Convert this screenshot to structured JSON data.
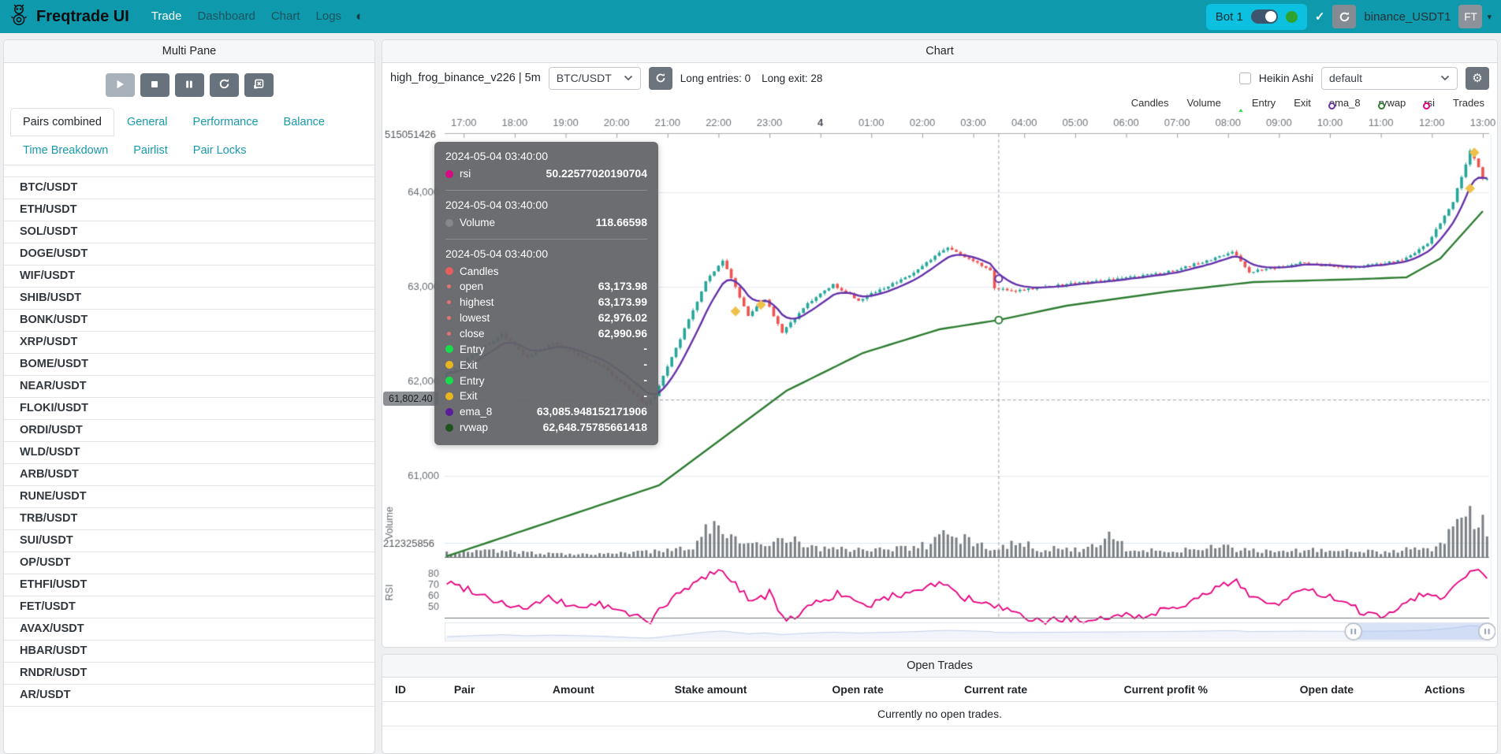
{
  "navbar": {
    "brand": "Freqtrade UI",
    "items": [
      {
        "label": "Trade",
        "active": true
      },
      {
        "label": "Dashboard",
        "active": false
      },
      {
        "label": "Chart",
        "active": false
      },
      {
        "label": "Logs",
        "active": false
      }
    ],
    "bot_label": "Bot 1",
    "account": "binance_USDT1",
    "avatar": "FT"
  },
  "icons": {
    "theme": "◐",
    "check": "✓",
    "caret": "▾",
    "gear": "⚙"
  },
  "sidebar": {
    "title": "Multi Pane",
    "controls": [
      "play",
      "stop",
      "pause",
      "refresh",
      "close-chart"
    ],
    "tabs": [
      "Pairs combined",
      "General",
      "Performance",
      "Balance",
      "Time Breakdown",
      "Pairlist",
      "Pair Locks"
    ],
    "active_tab": "Pairs combined",
    "pairs": [
      "BTC/USDT",
      "ETH/USDT",
      "SOL/USDT",
      "DOGE/USDT",
      "WIF/USDT",
      "SHIB/USDT",
      "BONK/USDT",
      "XRP/USDT",
      "BOME/USDT",
      "NEAR/USDT",
      "FLOKI/USDT",
      "ORDI/USDT",
      "WLD/USDT",
      "ARB/USDT",
      "RUNE/USDT",
      "TRB/USDT",
      "SUI/USDT",
      "OP/USDT",
      "ETHFI/USDT",
      "FET/USDT",
      "AVAX/USDT",
      "HBAR/USDT",
      "RNDR/USDT",
      "AR/USDT"
    ]
  },
  "chart": {
    "panel_title": "Chart",
    "strategy": "high_frog_binance_v226 | 5m",
    "pair": "BTC/USDT",
    "entries_label": "Long entries: 0",
    "exits_label": "Long exit: 28",
    "heikin_ashi_label": "Heikin Ashi",
    "plot_config": "default",
    "legend": [
      {
        "label": "Candles",
        "marker": "rect",
        "color": "#2aa79b"
      },
      {
        "label": "Volume",
        "marker": "rect",
        "color": "#808488"
      },
      {
        "label": "Entry",
        "marker": "triangle",
        "color": "#35e04f"
      },
      {
        "label": "Exit",
        "marker": "diamond",
        "color": "#f0c04a"
      },
      {
        "label": "ema_8",
        "marker": "ring-line",
        "color": "#6633aa"
      },
      {
        "label": "rvwap",
        "marker": "ring-line",
        "color": "#2e7d32"
      },
      {
        "label": "rsi",
        "marker": "ring-line",
        "color": "#e6007e"
      },
      {
        "label": "Trades",
        "marker": "circle",
        "color": "#4c9fd8"
      }
    ],
    "price_marker": "61,802.40",
    "tooltip": {
      "sections": [
        {
          "time": "2024-05-04 03:40:00",
          "rows": [
            {
              "label": "rsi",
              "dot": "#d60b83",
              "dot_size": 10,
              "value": "50.22577020190704"
            }
          ]
        },
        {
          "time": "2024-05-04 03:40:00",
          "rows": [
            {
              "label": "Volume",
              "dot": "#85898d",
              "dot_size": 10,
              "value": "118.66598"
            }
          ]
        },
        {
          "time": "2024-05-04 03:40:00",
          "rows": [
            {
              "label": "Candles",
              "dot": "#ec5b5b",
              "dot_size": 10,
              "value": ""
            },
            {
              "label": "open",
              "dot": "#e57373",
              "dot_size": 5,
              "value": "63,173.98"
            },
            {
              "label": "highest",
              "dot": "#e57373",
              "dot_size": 5,
              "value": "63,173.99"
            },
            {
              "label": "lowest",
              "dot": "#e57373",
              "dot_size": 5,
              "value": "62,976.02"
            },
            {
              "label": "close",
              "dot": "#e57373",
              "dot_size": 5,
              "value": "62,990.96"
            },
            {
              "label": "Entry",
              "dot": "#17dd4b",
              "dot_size": 10,
              "value": "-"
            },
            {
              "label": "Exit",
              "dot": "#eab51c",
              "dot_size": 10,
              "value": "-"
            },
            {
              "label": "Entry",
              "dot": "#17dd4b",
              "dot_size": 10,
              "value": "-"
            },
            {
              "label": "Exit",
              "dot": "#eab51c",
              "dot_size": 10,
              "value": "-"
            },
            {
              "label": "ema_8",
              "dot": "#5a1d99",
              "dot_size": 10,
              "value": "63,085.948152171906"
            },
            {
              "label": "rvwap",
              "dot": "#1e531d",
              "dot_size": 10,
              "value": "62,648.75785661418"
            }
          ]
        }
      ]
    },
    "chart_data": {
      "type": "candlestick+volume+rsi",
      "x_ticks": [
        "17:00",
        "18:00",
        "19:00",
        "20:00",
        "21:00",
        "22:00",
        "23:00",
        "4",
        "01:00",
        "02:00",
        "03:00",
        "04:00",
        "05:00",
        "06:00",
        "07:00",
        "08:00",
        "09:00",
        "10:00",
        "11:00",
        "12:00",
        "13:00"
      ],
      "bold_tick": "4",
      "y_ticks": [
        64000,
        63000,
        62000,
        61000
      ],
      "candle_count": 246,
      "price_anchors": [
        [
          0,
          62050
        ],
        [
          14,
          62500
        ],
        [
          20,
          62250
        ],
        [
          26,
          62400
        ],
        [
          38,
          62150
        ],
        [
          48,
          61750
        ],
        [
          50,
          61850
        ],
        [
          62,
          63050
        ],
        [
          66,
          63280
        ],
        [
          72,
          62700
        ],
        [
          76,
          62870
        ],
        [
          80,
          62520
        ],
        [
          86,
          62820
        ],
        [
          92,
          63020
        ],
        [
          98,
          62860
        ],
        [
          110,
          63120
        ],
        [
          119,
          63420
        ],
        [
          129,
          63170
        ],
        [
          130,
          62990
        ],
        [
          134,
          62950
        ],
        [
          146,
          63020
        ],
        [
          158,
          63080
        ],
        [
          170,
          63150
        ],
        [
          182,
          63300
        ],
        [
          186,
          63380
        ],
        [
          190,
          63160
        ],
        [
          202,
          63250
        ],
        [
          214,
          63200
        ],
        [
          226,
          63280
        ],
        [
          232,
          63450
        ],
        [
          238,
          63900
        ],
        [
          242,
          64430
        ],
        [
          243,
          64360
        ],
        [
          245,
          64150
        ]
      ],
      "rvwap_anchors": [
        [
          0,
          60150
        ],
        [
          50,
          60900
        ],
        [
          62,
          61300
        ],
        [
          80,
          61900
        ],
        [
          98,
          62300
        ],
        [
          116,
          62550
        ],
        [
          130,
          62649
        ],
        [
          146,
          62800
        ],
        [
          170,
          62950
        ],
        [
          190,
          63050
        ],
        [
          214,
          63080
        ],
        [
          226,
          63100
        ],
        [
          234,
          63300
        ],
        [
          245,
          63850
        ]
      ],
      "rsi_anchors": [
        [
          0,
          72
        ],
        [
          6,
          65
        ],
        [
          12,
          55
        ],
        [
          18,
          48
        ],
        [
          24,
          57
        ],
        [
          30,
          50
        ],
        [
          36,
          52
        ],
        [
          42,
          44
        ],
        [
          48,
          38
        ],
        [
          54,
          60
        ],
        [
          60,
          75
        ],
        [
          64,
          85
        ],
        [
          68,
          70
        ],
        [
          72,
          55
        ],
        [
          76,
          62
        ],
        [
          80,
          35
        ],
        [
          84,
          48
        ],
        [
          88,
          55
        ],
        [
          92,
          62
        ],
        [
          98,
          50
        ],
        [
          104,
          58
        ],
        [
          110,
          65
        ],
        [
          116,
          72
        ],
        [
          122,
          58
        ],
        [
          126,
          52
        ],
        [
          130,
          50
        ],
        [
          134,
          42
        ],
        [
          140,
          36
        ],
        [
          146,
          40
        ],
        [
          152,
          34
        ],
        [
          158,
          45
        ],
        [
          164,
          40
        ],
        [
          170,
          50
        ],
        [
          176,
          55
        ],
        [
          182,
          68
        ],
        [
          186,
          74
        ],
        [
          190,
          58
        ],
        [
          196,
          52
        ],
        [
          202,
          66
        ],
        [
          208,
          58
        ],
        [
          214,
          48
        ],
        [
          220,
          40
        ],
        [
          226,
          55
        ],
        [
          230,
          62
        ],
        [
          234,
          58
        ],
        [
          238,
          70
        ],
        [
          242,
          86
        ],
        [
          245,
          78
        ]
      ],
      "volume_anchors": [
        [
          0,
          60
        ],
        [
          10,
          80
        ],
        [
          20,
          50
        ],
        [
          30,
          40
        ],
        [
          40,
          45
        ],
        [
          50,
          70
        ],
        [
          58,
          120
        ],
        [
          62,
          380
        ],
        [
          64,
          520
        ],
        [
          66,
          300
        ],
        [
          70,
          150
        ],
        [
          76,
          120
        ],
        [
          80,
          260
        ],
        [
          86,
          120
        ],
        [
          92,
          100
        ],
        [
          100,
          90
        ],
        [
          108,
          110
        ],
        [
          114,
          150
        ],
        [
          118,
          430
        ],
        [
          120,
          280
        ],
        [
          126,
          130
        ],
        [
          130,
          119
        ],
        [
          134,
          200
        ],
        [
          140,
          90
        ],
        [
          146,
          110
        ],
        [
          150,
          80
        ],
        [
          157,
          360
        ],
        [
          160,
          90
        ],
        [
          170,
          70
        ],
        [
          176,
          100
        ],
        [
          182,
          120
        ],
        [
          190,
          80
        ],
        [
          196,
          60
        ],
        [
          202,
          90
        ],
        [
          208,
          70
        ],
        [
          214,
          80
        ],
        [
          220,
          60
        ],
        [
          226,
          90
        ],
        [
          232,
          110
        ],
        [
          236,
          300
        ],
        [
          240,
          500
        ],
        [
          242,
          560
        ],
        [
          244,
          420
        ],
        [
          245,
          380
        ]
      ],
      "exit_markers": [
        [
          68,
          62740
        ],
        [
          74,
          62810
        ],
        [
          241,
          64040
        ],
        [
          242,
          64420
        ]
      ],
      "crosshair": {
        "index": 130,
        "price_line": 61802.4,
        "ema_point": 63085.95,
        "rvwap_point": 62648.76
      },
      "volume_axis_top_label": "515051426",
      "volume_axis_label": "212325856",
      "axis_titles": {
        "volume": "Volume",
        "rsi": "RSI"
      },
      "rsi_ticks": [
        80,
        70,
        60,
        50
      ],
      "colors": {
        "up": "#26a69a",
        "down": "#ef5350",
        "ema": "#6633aa",
        "rvwap": "#2e7d32",
        "rsi": "#e6007e",
        "volume": "#7a7f83",
        "grid": "#e6ebf2",
        "crosshair": "#9aa0a6"
      },
      "datazoom": {
        "window_start_frac": 0.87,
        "window_end_frac": 0.998
      }
    }
  },
  "open_trades": {
    "title": "Open Trades",
    "columns": [
      "ID",
      "Pair",
      "Amount",
      "Stake amount",
      "Open rate",
      "Current rate",
      "Current profit %",
      "Open date",
      "Actions"
    ],
    "empty_text": "Currently no open trades."
  }
}
